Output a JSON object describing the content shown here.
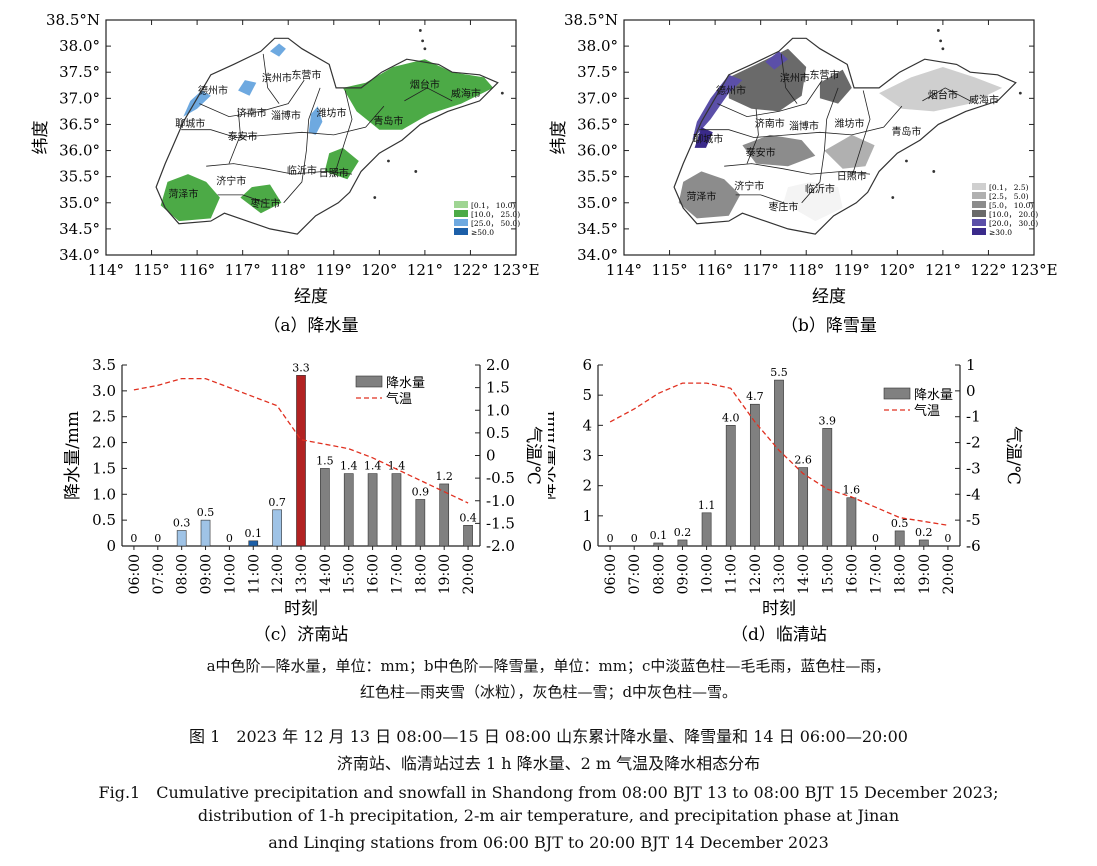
{
  "maps": [
    {
      "id": "a",
      "caption": "（a）降水量",
      "xlabel": "经度",
      "ylabel": "纬度",
      "xticks": [
        "114°",
        "115°",
        "116°",
        "117°",
        "118°",
        "119°",
        "120°",
        "121°",
        "122°",
        "123°E"
      ],
      "yticks": [
        "38.5°N",
        "38.0°",
        "37.5°",
        "37.0°",
        "36.5°",
        "36.0°",
        "35.5°",
        "35.0°",
        "34.5°",
        "34.0°"
      ],
      "cities": [
        {
          "name": "滨州市",
          "lon": 117.75,
          "lat": 37.32
        },
        {
          "name": "东营市",
          "lon": 118.4,
          "lat": 37.38
        },
        {
          "name": "德州市",
          "lon": 116.35,
          "lat": 37.08
        },
        {
          "name": "烟台市",
          "lon": 121.0,
          "lat": 37.2
        },
        {
          "name": "威海市",
          "lon": 121.9,
          "lat": 37.03
        },
        {
          "name": "聊城市",
          "lon": 115.85,
          "lat": 36.45
        },
        {
          "name": "济南市",
          "lon": 117.2,
          "lat": 36.65
        },
        {
          "name": "淄博市",
          "lon": 117.95,
          "lat": 36.6
        },
        {
          "name": "潍坊市",
          "lon": 118.95,
          "lat": 36.65
        },
        {
          "name": "青岛市",
          "lon": 120.2,
          "lat": 36.5
        },
        {
          "name": "泰安市",
          "lon": 117.0,
          "lat": 36.2
        },
        {
          "name": "济宁市",
          "lon": 116.75,
          "lat": 35.35
        },
        {
          "name": "日照市",
          "lon": 119.0,
          "lat": 35.5
        },
        {
          "name": "临沂市",
          "lon": 118.3,
          "lat": 35.55
        },
        {
          "name": "菏泽市",
          "lon": 115.7,
          "lat": 35.1
        },
        {
          "name": "枣庄市",
          "lon": 117.5,
          "lat": 34.92
        }
      ],
      "legend": [
        {
          "label": "[0.1， 10.0)",
          "color": "#9fd593"
        },
        {
          "label": "[10.0， 25.0)",
          "color": "#4caa46"
        },
        {
          "label": "[25.0， 50.0)",
          "color": "#6ea9e0"
        },
        {
          "label": "≥50.0",
          "color": "#1c5fa8"
        }
      ]
    },
    {
      "id": "b",
      "caption": "（b）降雪量",
      "xlabel": "经度",
      "ylabel": "纬度",
      "xticks": [
        "114°",
        "115°",
        "116°",
        "117°",
        "118°",
        "119°",
        "120°",
        "121°",
        "122°",
        "123°E"
      ],
      "yticks": [
        "38.5°N",
        "38.0°",
        "37.5°",
        "37.0°",
        "36.5°",
        "36.0°",
        "35.5°",
        "35.0°",
        "34.5°",
        "34.0°"
      ],
      "cities": [
        {
          "name": "滨州市",
          "lon": 117.75,
          "lat": 37.32
        },
        {
          "name": "东营市",
          "lon": 118.4,
          "lat": 37.38
        },
        {
          "name": "德州市",
          "lon": 116.35,
          "lat": 37.08
        },
        {
          "name": "烟台市",
          "lon": 121.0,
          "lat": 37.0
        },
        {
          "name": "威海市",
          "lon": 121.9,
          "lat": 36.9
        },
        {
          "name": "聊城市",
          "lon": 115.85,
          "lat": 36.15
        },
        {
          "name": "济南市",
          "lon": 117.2,
          "lat": 36.45
        },
        {
          "name": "淄博市",
          "lon": 117.95,
          "lat": 36.4
        },
        {
          "name": "潍坊市",
          "lon": 118.95,
          "lat": 36.45
        },
        {
          "name": "青岛市",
          "lon": 120.2,
          "lat": 36.3
        },
        {
          "name": "泰安市",
          "lon": 117.0,
          "lat": 35.9
        },
        {
          "name": "济宁市",
          "lon": 116.75,
          "lat": 35.25
        },
        {
          "name": "日照市",
          "lon": 119.0,
          "lat": 35.45
        },
        {
          "name": "临沂市",
          "lon": 118.3,
          "lat": 35.2
        },
        {
          "name": "菏泽市",
          "lon": 115.7,
          "lat": 35.05
        },
        {
          "name": "枣庄市",
          "lon": 117.5,
          "lat": 34.85
        }
      ],
      "legend": [
        {
          "label": "[0.1， 2.5)",
          "color": "#cfcfcf"
        },
        {
          "label": "[2.5， 5.0)",
          "color": "#b0b0b0"
        },
        {
          "label": "[5.0， 10.0)",
          "color": "#8c8c8c"
        },
        {
          "label": "[10.0， 20.0)",
          "color": "#6a6a6a"
        },
        {
          "label": "[20.0， 30.0)",
          "color": "#5b4fa8"
        },
        {
          "label": "≥30.0",
          "color": "#3a2a8a"
        }
      ]
    }
  ],
  "chart_data": [
    {
      "type": "bar",
      "id": "c",
      "caption": "（c）济南站",
      "categories": [
        "06:00",
        "07:00",
        "08:00",
        "09:00",
        "10:00",
        "11:00",
        "12:00",
        "13:00",
        "14:00",
        "15:00",
        "16:00",
        "17:00",
        "18:00",
        "19:00",
        "20:00"
      ],
      "values": [
        0,
        0,
        0.3,
        0.5,
        0,
        0.1,
        0.7,
        3.3,
        1.5,
        1.4,
        1.4,
        1.4,
        0.9,
        1.2,
        0.4
      ],
      "value_labels": [
        "0",
        "0",
        "0.3",
        "0.5",
        "0",
        "0.1",
        "0.7",
        "3.3",
        "1.5",
        "1.4",
        "1.4",
        "1.4",
        "0.9",
        "1.2",
        "0.4"
      ],
      "bar_colors": [
        "#9fc3e6",
        "#9fc3e6",
        "#9fc3e6",
        "#9fc3e6",
        "#9fc3e6",
        "#1c5fa8",
        "#9fc3e6",
        "#b22222",
        "#808080",
        "#808080",
        "#808080",
        "#808080",
        "#808080",
        "#808080",
        "#808080"
      ],
      "temperature": [
        1.45,
        1.55,
        1.7,
        1.7,
        1.5,
        1.3,
        1.1,
        0.35,
        0.25,
        0.15,
        -0.05,
        -0.3,
        -0.55,
        -0.8,
        -1.05
      ],
      "ylabel": "降水量/mm",
      "y2label": "气温/℃",
      "xlabel": "时刻",
      "ylim": [
        0,
        3.5
      ],
      "y2lim": [
        -2.0,
        2.0
      ],
      "yticks": [
        "0",
        "0.5",
        "1.0",
        "1.5",
        "2.0",
        "2.5",
        "3.0",
        "3.5"
      ],
      "y2ticks": [
        "-2.0",
        "-1.5",
        "-1.0",
        "-0.5",
        "0",
        "0.5",
        "1.0",
        "1.5",
        "2.0"
      ],
      "legend": [
        {
          "label": "降水量",
          "kind": "bar"
        },
        {
          "label": "气温",
          "kind": "line"
        }
      ]
    },
    {
      "type": "bar",
      "id": "d",
      "caption": "（d）临清站",
      "categories": [
        "06:00",
        "07:00",
        "08:00",
        "09:00",
        "10:00",
        "11:00",
        "12:00",
        "13:00",
        "14:00",
        "15:00",
        "16:00",
        "17:00",
        "18:00",
        "19:00",
        "20:00"
      ],
      "values": [
        0,
        0,
        0.1,
        0.2,
        1.1,
        4.0,
        4.7,
        5.5,
        2.6,
        3.9,
        1.6,
        0,
        0.5,
        0.2,
        0
      ],
      "value_labels": [
        "0",
        "0",
        "0.1",
        "0.2",
        "1.1",
        "4.0",
        "4.7",
        "5.5",
        "2.6",
        "3.9",
        "1.6",
        "0",
        "0.5",
        "0.2",
        "0"
      ],
      "bar_colors": [
        "#808080",
        "#808080",
        "#808080",
        "#808080",
        "#808080",
        "#808080",
        "#808080",
        "#808080",
        "#808080",
        "#808080",
        "#808080",
        "#808080",
        "#808080",
        "#808080",
        "#808080"
      ],
      "temperature": [
        -1.2,
        -0.7,
        -0.1,
        0.3,
        0.3,
        0.1,
        -1.2,
        -2.3,
        -3.2,
        -3.8,
        -4.1,
        -4.5,
        -4.9,
        -5.05,
        -5.2
      ],
      "ylabel": "降水量/mm",
      "y2label": "气温/℃",
      "xlabel": "时刻",
      "ylim": [
        0,
        6
      ],
      "y2lim": [
        -6,
        1
      ],
      "yticks": [
        "0",
        "1",
        "2",
        "3",
        "4",
        "5",
        "6"
      ],
      "y2ticks": [
        "-6",
        "-5",
        "-4",
        "-3",
        "-2",
        "-1",
        "0",
        "1"
      ],
      "legend": [
        {
          "label": "降水量",
          "kind": "bar"
        },
        {
          "label": "气温",
          "kind": "line"
        }
      ]
    }
  ],
  "notes": {
    "line1": "a中色阶—降水量，单位：mm；b中色阶—降雪量，单位：mm；c中淡蓝色柱—毛毛雨，蓝色柱—雨，",
    "line2": "红色柱—雨夹雪（冰粒），灰色柱—雪；d中灰色柱—雪。"
  },
  "caption": {
    "cn1": "图 1　2023 年 12 月 13 日 08:00—15 日 08:00 山东累计降水量、降雪量和 14 日 06:00—20:00",
    "cn2": "济南站、临清站过去 1 h 降水量、2 m 气温及降水相态分布",
    "en1": "Fig.1　Cumulative precipitation and snowfall in Shandong from 08:00 BJT 13 to 08:00 BJT 15 December 2023;",
    "en2": "distribution of 1-h precipitation, 2-m air temperature, and precipitation phase at Jinan",
    "en3": "and Linqing stations from 06:00 BJT to 20:00 BJT 14 December 2023"
  }
}
